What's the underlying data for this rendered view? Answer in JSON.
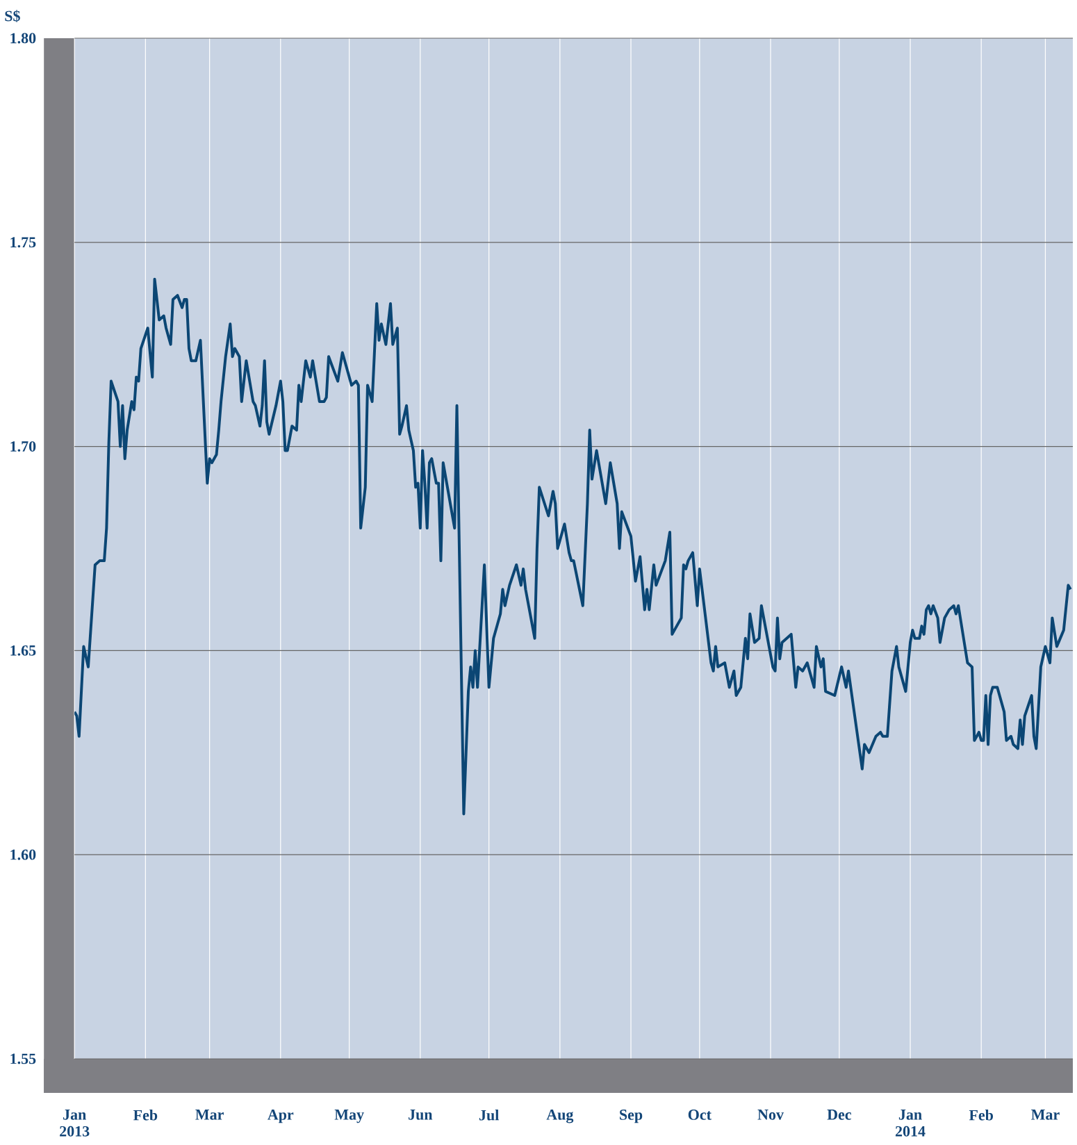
{
  "chart_data": {
    "type": "line",
    "ylabel": "S$",
    "color": "#0b4674",
    "grid": true,
    "xlim": [
      "2013-01-01",
      "2014-03-13"
    ],
    "xticks": [
      {
        "value": "2013-01-01",
        "label": "Jan 2013"
      },
      {
        "value": "2013-02-01",
        "label": "Feb"
      },
      {
        "value": "2013-03-01",
        "label": "Mar"
      },
      {
        "value": "2013-04-01",
        "label": "Apr"
      },
      {
        "value": "2013-05-01",
        "label": "May"
      },
      {
        "value": "2013-06-01",
        "label": "Jun"
      },
      {
        "value": "2013-07-01",
        "label": "Jul"
      },
      {
        "value": "2013-08-01",
        "label": "Aug"
      },
      {
        "value": "2013-09-01",
        "label": "Sep"
      },
      {
        "value": "2013-10-01",
        "label": "Oct"
      },
      {
        "value": "2013-11-01",
        "label": "Nov"
      },
      {
        "value": "2013-12-01",
        "label": "Dec"
      },
      {
        "value": "2014-01-01",
        "label": "Jan 2014"
      },
      {
        "value": "2014-02-01",
        "label": "Feb"
      },
      {
        "value": "2014-03-01",
        "label": "Mar"
      }
    ],
    "ylim": [
      1.55,
      1.8
    ],
    "yticks": [
      {
        "value": 1.55,
        "label": "1.55"
      },
      {
        "value": 1.6,
        "label": "1.60"
      },
      {
        "value": 1.65,
        "label": "1.65"
      },
      {
        "value": 1.7,
        "label": "1.70"
      },
      {
        "value": 1.75,
        "label": "1.75"
      },
      {
        "value": 1.8,
        "label": "1.80"
      }
    ],
    "x": [
      "2013-01-01",
      "2013-01-02",
      "2013-01-03",
      "2013-01-05",
      "2013-01-07",
      "2013-01-10",
      "2013-01-12",
      "2013-01-14",
      "2013-01-15",
      "2013-01-16",
      "2013-01-17",
      "2013-01-20",
      "2013-01-21",
      "2013-01-22",
      "2013-01-23",
      "2013-01-24",
      "2013-01-26",
      "2013-01-27",
      "2013-01-28",
      "2013-01-29",
      "2013-01-30",
      "2013-02-02",
      "2013-02-04",
      "2013-02-05",
      "2013-02-07",
      "2013-02-09",
      "2013-02-10",
      "2013-02-12",
      "2013-02-13",
      "2013-02-15",
      "2013-02-17",
      "2013-02-18",
      "2013-02-19",
      "2013-02-20",
      "2013-02-21",
      "2013-02-23",
      "2013-02-25",
      "2013-02-28",
      "2013-03-01",
      "2013-03-02",
      "2013-03-04",
      "2013-03-05",
      "2013-03-06",
      "2013-03-08",
      "2013-03-10",
      "2013-03-11",
      "2013-03-12",
      "2013-03-14",
      "2013-03-15",
      "2013-03-17",
      "2013-03-20",
      "2013-03-21",
      "2013-03-23",
      "2013-03-24",
      "2013-03-25",
      "2013-03-26",
      "2013-03-27",
      "2013-03-30",
      "2013-04-01",
      "2013-04-02",
      "2013-04-03",
      "2013-04-04",
      "2013-04-06",
      "2013-04-08",
      "2013-04-09",
      "2013-04-10",
      "2013-04-12",
      "2013-04-14",
      "2013-04-15",
      "2013-04-18",
      "2013-04-20",
      "2013-04-21",
      "2013-04-22",
      "2013-04-26",
      "2013-04-28",
      "2013-05-02",
      "2013-05-04",
      "2013-05-05",
      "2013-05-06",
      "2013-05-08",
      "2013-05-09",
      "2013-05-11",
      "2013-05-13",
      "2013-05-14",
      "2013-05-15",
      "2013-05-17",
      "2013-05-19",
      "2013-05-20",
      "2013-05-22",
      "2013-05-23",
      "2013-05-24",
      "2013-05-26",
      "2013-05-27",
      "2013-05-29",
      "2013-05-30",
      "2013-05-31",
      "2013-06-01",
      "2013-06-02",
      "2013-06-03",
      "2013-06-04",
      "2013-06-05",
      "2013-06-06",
      "2013-06-08",
      "2013-06-09",
      "2013-06-10",
      "2013-06-11",
      "2013-06-16",
      "2013-06-17",
      "2013-06-20",
      "2013-06-22",
      "2013-06-23",
      "2013-06-24",
      "2013-06-25",
      "2013-06-26",
      "2013-06-29",
      "2013-07-01",
      "2013-07-03",
      "2013-07-06",
      "2013-07-07",
      "2013-07-08",
      "2013-07-10",
      "2013-07-13",
      "2013-07-15",
      "2013-07-16",
      "2013-07-17",
      "2013-07-20",
      "2013-07-21",
      "2013-07-22",
      "2013-07-23",
      "2013-07-27",
      "2013-07-29",
      "2013-07-30",
      "2013-07-31",
      "2013-08-03",
      "2013-08-05",
      "2013-08-06",
      "2013-08-07",
      "2013-08-11",
      "2013-08-13",
      "2013-08-14",
      "2013-08-15",
      "2013-08-17",
      "2013-08-21",
      "2013-08-23",
      "2013-08-26",
      "2013-08-27",
      "2013-08-28",
      "2013-09-01",
      "2013-09-03",
      "2013-09-05",
      "2013-09-07",
      "2013-09-08",
      "2013-09-09",
      "2013-09-11",
      "2013-09-12",
      "2013-09-16",
      "2013-09-18",
      "2013-09-19",
      "2013-09-23",
      "2013-09-24",
      "2013-09-25",
      "2013-09-26",
      "2013-09-28",
      "2013-09-30",
      "2013-10-01",
      "2013-10-06",
      "2013-10-07",
      "2013-10-08",
      "2013-10-09",
      "2013-10-12",
      "2013-10-14",
      "2013-10-16",
      "2013-10-17",
      "2013-10-19",
      "2013-10-21",
      "2013-10-22",
      "2013-10-23",
      "2013-10-25",
      "2013-10-27",
      "2013-10-28",
      "2013-11-02",
      "2013-11-03",
      "2013-11-04",
      "2013-11-05",
      "2013-11-06",
      "2013-11-10",
      "2013-11-12",
      "2013-11-13",
      "2013-11-15",
      "2013-11-17",
      "2013-11-20",
      "2013-11-21",
      "2013-11-23",
      "2013-11-24",
      "2013-11-25",
      "2013-11-29",
      "2013-12-02",
      "2013-12-04",
      "2013-12-05",
      "2013-12-11",
      "2013-12-12",
      "2013-12-14",
      "2013-12-17",
      "2013-12-19",
      "2013-12-20",
      "2013-12-22",
      "2013-12-24",
      "2013-12-26",
      "2013-12-27",
      "2013-12-30",
      "2014-01-01",
      "2014-01-02",
      "2014-01-03",
      "2014-01-05",
      "2014-01-06",
      "2014-01-07",
      "2014-01-08",
      "2014-01-09",
      "2014-01-10",
      "2014-01-11",
      "2014-01-13",
      "2014-01-14",
      "2014-01-16",
      "2014-01-18",
      "2014-01-20",
      "2014-01-21",
      "2014-01-22",
      "2014-01-26",
      "2014-01-28",
      "2014-01-29",
      "2014-01-31",
      "2014-02-01",
      "2014-02-02",
      "2014-02-03",
      "2014-02-04",
      "2014-02-05",
      "2014-02-06",
      "2014-02-08",
      "2014-02-11",
      "2014-02-12",
      "2014-02-14",
      "2014-02-15",
      "2014-02-17",
      "2014-02-18",
      "2014-02-19",
      "2014-02-20",
      "2014-02-23",
      "2014-02-24",
      "2014-02-25",
      "2014-02-27",
      "2014-03-01",
      "2014-03-03",
      "2014-03-04",
      "2014-03-06",
      "2014-03-09",
      "2014-03-11",
      "2014-03-12"
    ],
    "values": [
      1.635,
      1.634,
      1.629,
      1.651,
      1.646,
      1.671,
      1.672,
      1.672,
      1.68,
      1.701,
      1.716,
      1.711,
      1.7,
      1.71,
      1.697,
      1.704,
      1.711,
      1.709,
      1.717,
      1.716,
      1.724,
      1.729,
      1.717,
      1.741,
      1.731,
      1.732,
      1.729,
      1.725,
      1.736,
      1.737,
      1.734,
      1.736,
      1.736,
      1.724,
      1.721,
      1.721,
      1.726,
      1.691,
      1.697,
      1.696,
      1.698,
      1.704,
      1.711,
      1.722,
      1.73,
      1.722,
      1.724,
      1.722,
      1.711,
      1.721,
      1.711,
      1.71,
      1.705,
      1.71,
      1.721,
      1.706,
      1.703,
      1.71,
      1.716,
      1.711,
      1.699,
      1.699,
      1.705,
      1.704,
      1.715,
      1.711,
      1.721,
      1.717,
      1.721,
      1.711,
      1.711,
      1.712,
      1.722,
      1.716,
      1.723,
      1.715,
      1.716,
      1.715,
      1.68,
      1.69,
      1.715,
      1.711,
      1.735,
      1.726,
      1.73,
      1.725,
      1.735,
      1.725,
      1.729,
      1.703,
      1.705,
      1.71,
      1.704,
      1.699,
      1.69,
      1.691,
      1.68,
      1.699,
      1.691,
      1.68,
      1.696,
      1.697,
      1.691,
      1.691,
      1.672,
      1.696,
      1.68,
      1.71,
      1.61,
      1.64,
      1.646,
      1.641,
      1.65,
      1.641,
      1.671,
      1.641,
      1.653,
      1.659,
      1.665,
      1.661,
      1.666,
      1.671,
      1.666,
      1.67,
      1.665,
      1.656,
      1.653,
      1.675,
      1.69,
      1.683,
      1.689,
      1.686,
      1.675,
      1.681,
      1.674,
      1.672,
      1.672,
      1.661,
      1.686,
      1.704,
      1.692,
      1.699,
      1.686,
      1.696,
      1.686,
      1.675,
      1.684,
      1.678,
      1.667,
      1.673,
      1.66,
      1.665,
      1.66,
      1.671,
      1.666,
      1.672,
      1.679,
      1.654,
      1.658,
      1.671,
      1.67,
      1.672,
      1.674,
      1.661,
      1.67,
      1.647,
      1.645,
      1.651,
      1.646,
      1.647,
      1.641,
      1.645,
      1.639,
      1.641,
      1.653,
      1.648,
      1.659,
      1.652,
      1.653,
      1.661,
      1.646,
      1.645,
      1.658,
      1.648,
      1.652,
      1.654,
      1.641,
      1.646,
      1.645,
      1.647,
      1.641,
      1.651,
      1.646,
      1.648,
      1.64,
      1.639,
      1.646,
      1.641,
      1.645,
      1.621,
      1.627,
      1.625,
      1.629,
      1.63,
      1.629,
      1.629,
      1.645,
      1.651,
      1.646,
      1.64,
      1.652,
      1.655,
      1.653,
      1.653,
      1.656,
      1.654,
      1.66,
      1.661,
      1.659,
      1.661,
      1.658,
      1.652,
      1.658,
      1.66,
      1.661,
      1.659,
      1.661,
      1.647,
      1.646,
      1.628,
      1.63,
      1.628,
      1.628,
      1.639,
      1.627,
      1.639,
      1.641,
      1.641,
      1.635,
      1.628,
      1.629,
      1.627,
      1.626,
      1.633,
      1.627,
      1.634,
      1.639,
      1.629,
      1.626,
      1.646,
      1.651,
      1.647,
      1.658,
      1.651,
      1.655,
      1.666,
      1.665
    ]
  }
}
